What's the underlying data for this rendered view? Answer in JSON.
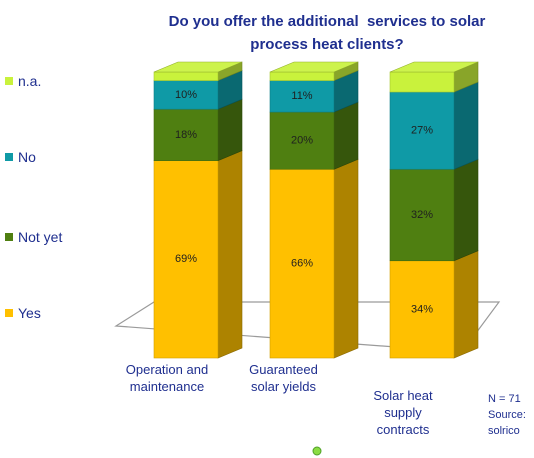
{
  "chart_data": {
    "type": "bar",
    "stacked": true,
    "title": "Do you offer the additional  services to solar process heat clients?",
    "title_lines": [
      "Do you offer the additional  services to solar",
      "process heat clients?"
    ],
    "categories": [
      "Operation and maintenance",
      "Guaranteed solar yields",
      "Solar heat supply contracts"
    ],
    "category_lines": [
      [
        "Operation and",
        "maintenance"
      ],
      [
        "Guaranteed",
        "solar yields"
      ],
      [
        "Solar heat",
        "supply",
        "contracts"
      ]
    ],
    "series": [
      {
        "name": "Yes",
        "values": [
          69,
          66,
          34
        ],
        "labels": [
          "69%",
          "66%",
          "34%"
        ]
      },
      {
        "name": "Not yet",
        "values": [
          18,
          20,
          32
        ],
        "labels": [
          "18%",
          "20%",
          "32%"
        ]
      },
      {
        "name": "No",
        "values": [
          10,
          11,
          27
        ],
        "labels": [
          "10%",
          "11%",
          "27%"
        ]
      },
      {
        "name": "n.a.",
        "values": [
          3,
          3,
          7
        ],
        "labels": [
          "",
          "",
          ""
        ]
      }
    ],
    "ylim": [
      0,
      100
    ],
    "legend_position": "left",
    "legend_order": [
      "n.a.",
      "No",
      "Not yet",
      "Yes"
    ],
    "colors": {
      "Yes": "#ffc000",
      "Not yet": "#4f7f11",
      "No": "#0f9aa6",
      "n.a.": "#c9f23c"
    },
    "footnote_lines": [
      "N = 71",
      "Source:",
      "solrico"
    ],
    "grid": false
  },
  "text_color": "#1f2f8f"
}
